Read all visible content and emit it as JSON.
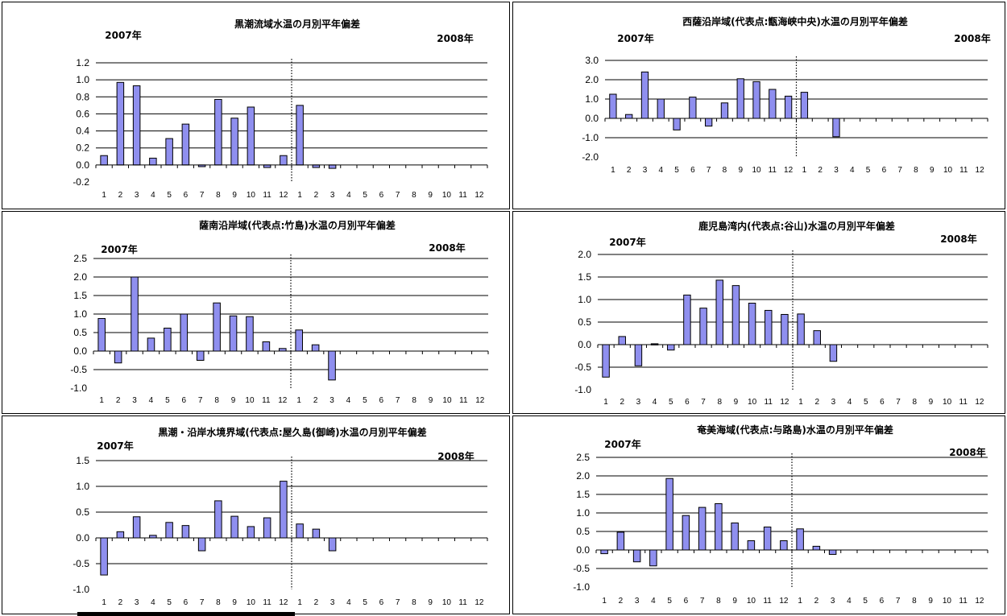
{
  "colors": {
    "bar_fill": "#8f8fef",
    "bar_stroke": "#000000",
    "grid": "#000000"
  },
  "chart_data": [
    {
      "type": "bar",
      "title": "黒潮流域水温の月別平年偏差",
      "year_left": "2007年",
      "year_right": "2008年",
      "categories": [
        "1",
        "2",
        "3",
        "4",
        "5",
        "6",
        "7",
        "8",
        "9",
        "10",
        "11",
        "12",
        "1",
        "2",
        "3",
        "4",
        "5",
        "6",
        "7",
        "8",
        "9",
        "10",
        "11",
        "12"
      ],
      "values": [
        0.11,
        0.97,
        0.93,
        0.08,
        0.31,
        0.48,
        -0.02,
        0.77,
        0.55,
        0.68,
        -0.03,
        0.11,
        0.7,
        -0.03,
        -0.04,
        null,
        null,
        null,
        null,
        null,
        null,
        null,
        null,
        null
      ],
      "ylim": [
        -0.2,
        1.2
      ],
      "yticks": [
        "1.2",
        "1.0",
        "0.8",
        "0.6",
        "0.4",
        "0.2",
        "0.0",
        "-0.2"
      ],
      "ytick_values": [
        1.2,
        1.0,
        0.8,
        0.6,
        0.4,
        0.2,
        0.0,
        -0.2
      ],
      "grid": true,
      "year_divider_after": 12
    },
    {
      "type": "bar",
      "title": "西薩沿岸域(代表点:甑海峡中央)水温の月別平年偏差",
      "year_left": "2007年",
      "year_right": "2008年",
      "categories": [
        "1",
        "2",
        "3",
        "4",
        "5",
        "6",
        "7",
        "8",
        "9",
        "10",
        "11",
        "12",
        "1",
        "2",
        "3",
        "4",
        "5",
        "6",
        "7",
        "8",
        "9",
        "10",
        "11",
        "12"
      ],
      "values": [
        1.25,
        0.2,
        2.4,
        1.0,
        -0.6,
        1.1,
        -0.4,
        0.8,
        2.05,
        1.9,
        1.5,
        1.15,
        1.35,
        null,
        -0.95,
        null,
        null,
        null,
        null,
        null,
        null,
        null,
        null,
        null
      ],
      "ylim": [
        -2.0,
        3.0
      ],
      "yticks": [
        "3.0",
        "2.0",
        "1.0",
        "0.0",
        "-1.0",
        "-2.0"
      ],
      "ytick_values": [
        3.0,
        2.0,
        1.0,
        0.0,
        -1.0,
        -2.0
      ],
      "grid": true,
      "year_divider_after": 12
    },
    {
      "type": "bar",
      "title": "薩南沿岸域(代表点:竹島)水温の月別平年偏差",
      "year_left": "2007年",
      "year_right": "2008年",
      "categories": [
        "1",
        "2",
        "3",
        "4",
        "5",
        "6",
        "7",
        "8",
        "9",
        "10",
        "11",
        "12",
        "1",
        "2",
        "3",
        "4",
        "5",
        "6",
        "7",
        "8",
        "9",
        "10",
        "11",
        "12"
      ],
      "values": [
        0.88,
        -0.32,
        2.0,
        0.35,
        0.62,
        1.0,
        -0.25,
        1.3,
        0.95,
        0.93,
        0.25,
        0.07,
        0.57,
        0.17,
        -0.78,
        null,
        null,
        null,
        null,
        null,
        null,
        null,
        null,
        null
      ],
      "ylim": [
        -1.0,
        2.5
      ],
      "yticks": [
        "2.5",
        "2.0",
        "1.5",
        "1.0",
        "0.5",
        "0.0",
        "-0.5",
        "-1.0"
      ],
      "ytick_values": [
        2.5,
        2.0,
        1.5,
        1.0,
        0.5,
        0.0,
        -0.5,
        -1.0
      ],
      "grid": true,
      "year_divider_after": 12
    },
    {
      "type": "bar",
      "title": "鹿児島湾内(代表点:谷山)水温の月別平年偏差",
      "year_left": "2007年",
      "year_right": "2008年",
      "categories": [
        "1",
        "2",
        "3",
        "4",
        "5",
        "6",
        "7",
        "8",
        "9",
        "10",
        "11",
        "12",
        "1",
        "2",
        "3",
        "4",
        "5",
        "6",
        "7",
        "8",
        "9",
        "10",
        "11",
        "12"
      ],
      "values": [
        -0.72,
        0.18,
        -0.47,
        0.02,
        -0.12,
        1.1,
        0.81,
        1.43,
        1.31,
        0.92,
        0.76,
        0.67,
        0.68,
        0.31,
        -0.37,
        null,
        null,
        null,
        null,
        null,
        null,
        null,
        null,
        null
      ],
      "ylim": [
        -1.0,
        2.0
      ],
      "yticks": [
        "2.0",
        "1.5",
        "1.0",
        "0.5",
        "0.0",
        "-0.5",
        "-1.0"
      ],
      "ytick_values": [
        2.0,
        1.5,
        1.0,
        0.5,
        0.0,
        -0.5,
        -1.0
      ],
      "grid": true,
      "year_divider_after": 12
    },
    {
      "type": "bar",
      "title": "黒潮・沿岸水境界域(代表点:屋久島(御崎)水温の月別平年偏差",
      "year_left": "2007年",
      "year_right": "2008年",
      "categories": [
        "1",
        "2",
        "3",
        "4",
        "5",
        "6",
        "7",
        "8",
        "9",
        "10",
        "11",
        "12",
        "1",
        "2",
        "3",
        "4",
        "5",
        "6",
        "7",
        "8",
        "9",
        "10",
        "11",
        "12"
      ],
      "values": [
        -0.72,
        0.12,
        0.41,
        0.05,
        0.3,
        0.24,
        -0.25,
        0.72,
        0.42,
        0.22,
        0.39,
        1.1,
        0.27,
        0.17,
        -0.25,
        null,
        null,
        null,
        null,
        null,
        null,
        null,
        null,
        null
      ],
      "ylim": [
        -1.0,
        1.5
      ],
      "yticks": [
        "1.5",
        "1.0",
        "0.5",
        "0.0",
        "-0.5",
        "-1.0"
      ],
      "ytick_values": [
        1.5,
        1.0,
        0.5,
        0.0,
        -0.5,
        -1.0
      ],
      "grid": true,
      "year_divider_after": 12
    },
    {
      "type": "bar",
      "title": "奄美海域(代表点:与路島)水温の月別平年偏差",
      "year_left": "2007年",
      "year_right": "2008年",
      "categories": [
        "1",
        "2",
        "3",
        "4",
        "5",
        "6",
        "7",
        "8",
        "9",
        "10",
        "11",
        "12",
        "1",
        "2",
        "3",
        "4",
        "5",
        "6",
        "7",
        "8",
        "9",
        "10",
        "11",
        "12"
      ],
      "values": [
        -0.1,
        0.48,
        -0.32,
        -0.43,
        1.93,
        0.93,
        1.15,
        1.25,
        0.73,
        0.25,
        0.62,
        0.25,
        0.57,
        0.1,
        -0.12,
        null,
        null,
        null,
        null,
        null,
        null,
        null,
        null,
        null
      ],
      "ylim": [
        -1.0,
        2.5
      ],
      "yticks": [
        "2.5",
        "2.0",
        "1.5",
        "1.0",
        "0.5",
        "0.0",
        "-0.5",
        "-1.0"
      ],
      "ytick_values": [
        2.5,
        2.0,
        1.5,
        1.0,
        0.5,
        0.0,
        -0.5,
        -1.0
      ],
      "grid": true,
      "year_divider_after": 12
    }
  ]
}
